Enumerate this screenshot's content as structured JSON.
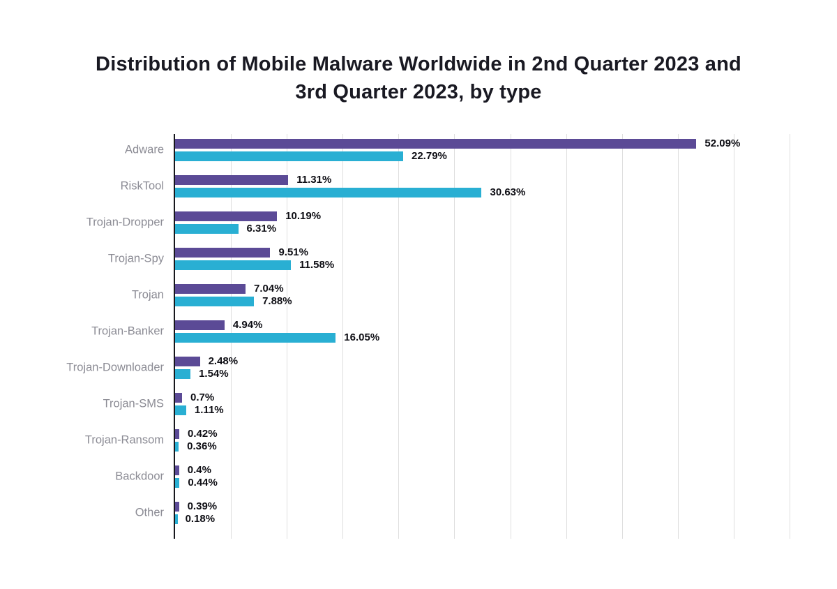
{
  "page": {
    "background": "#ffffff"
  },
  "chart_data": {
    "type": "bar",
    "orientation": "horizontal",
    "title": "Distribution of Mobile Malware Worldwide in 2nd Quarter 2023 and 3rd Quarter 2023, by type",
    "categories": [
      "Adware",
      "RiskTool",
      "Trojan-Dropper",
      "Trojan-Spy",
      "Trojan",
      "Trojan-Banker",
      "Trojan-Downloader",
      "Trojan-SMS",
      "Trojan-Ransom",
      "Backdoor",
      "Other"
    ],
    "series": [
      {
        "name": "2nd Quarter 2023",
        "color": "#5b4a96",
        "values": [
          52.09,
          11.31,
          10.19,
          9.51,
          7.04,
          4.94,
          2.48,
          0.7,
          0.42,
          0.4,
          0.39
        ],
        "labels": [
          "52.09%",
          "11.31%",
          "10.19%",
          "9.51%",
          "7.04%",
          "4.94%",
          "2.48%",
          "0.7%",
          "0.42%",
          "0.4%",
          "0.39%"
        ]
      },
      {
        "name": "3rd Quarter 2023",
        "color": "#29afd3",
        "values": [
          22.79,
          30.63,
          6.31,
          11.58,
          7.88,
          16.05,
          1.54,
          1.11,
          0.36,
          0.44,
          0.18
        ],
        "labels": [
          "22.79%",
          "30.63%",
          "6.31%",
          "11.58%",
          "7.88%",
          "16.05%",
          "1.54%",
          "1.11%",
          "0.36%",
          "0.44%",
          "0.18%"
        ]
      }
    ],
    "xlabel": "",
    "ylabel": "",
    "xlim": [
      0,
      61.4
    ],
    "x_tick_labels": "none",
    "legend": "none",
    "gridlines": {
      "show": true,
      "intervals": 11,
      "color": "#dedede"
    },
    "styles": {
      "axis_color": "#17171c",
      "title_color": "#191922",
      "category_label_color": "#8b8b94",
      "value_label_color": "#0e0e14"
    }
  }
}
